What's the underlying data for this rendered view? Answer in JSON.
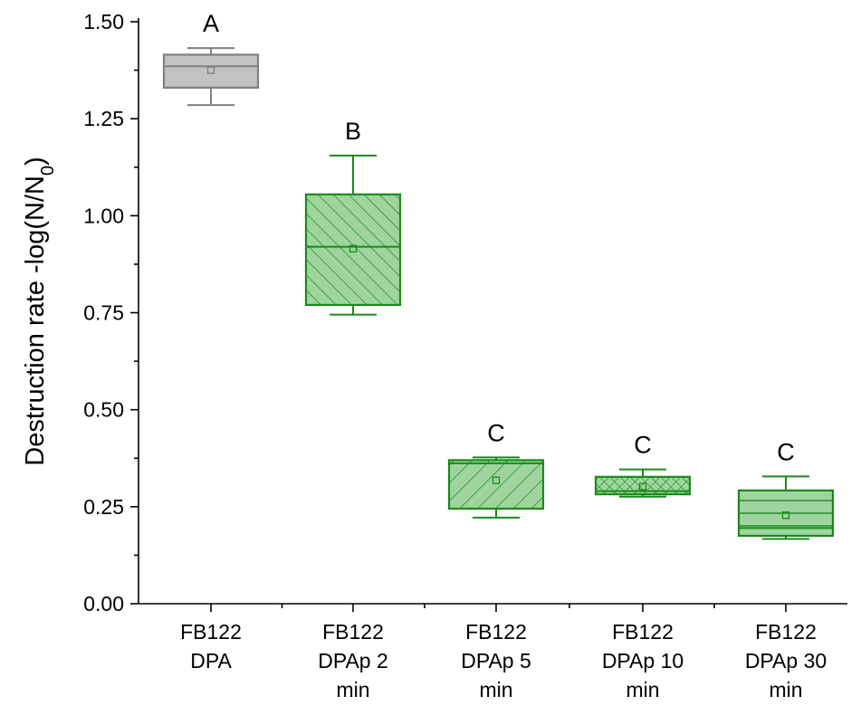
{
  "chart_data": {
    "type": "box",
    "title": "",
    "xlabel": "",
    "ylabel": "Destruction rate -log(N/N",
    "ylabel_subscript": "0",
    "ylabel_suffix": ")",
    "ylim": [
      0,
      1.5
    ],
    "yticks": [
      0.0,
      0.25,
      0.5,
      0.75,
      1.0,
      1.25,
      1.5
    ],
    "ytick_labels": [
      "0.00",
      "0.25",
      "0.50",
      "0.75",
      "1.00",
      "1.25",
      "1.50"
    ],
    "grid": false,
    "categories": [
      [
        "FB122",
        "DPA"
      ],
      [
        "FB122",
        "DPAp 2",
        "min"
      ],
      [
        "FB122",
        "DPAp 5",
        "min"
      ],
      [
        "FB122",
        "DPAp 10",
        "min"
      ],
      [
        "FB122",
        "DPAp 30",
        "min"
      ]
    ],
    "boxes": [
      {
        "whisker_low": 1.285,
        "q1": 1.33,
        "median": 1.385,
        "q3": 1.415,
        "whisker_high": 1.432,
        "mean": 1.375,
        "group_letter": "A",
        "color": "#808080",
        "fill": "#c2c2c2",
        "pattern": "none"
      },
      {
        "whisker_low": 0.745,
        "q1": 0.77,
        "median": 0.92,
        "q3": 1.055,
        "whisker_high": 1.155,
        "mean": 0.915,
        "group_letter": "B",
        "color": "#1a8a1a",
        "fill": "#9fd49f",
        "pattern": "diagonal-forward"
      },
      {
        "whisker_low": 0.222,
        "q1": 0.245,
        "median": 0.362,
        "q3": 0.37,
        "whisker_high": 0.377,
        "mean": 0.318,
        "group_letter": "C",
        "color": "#1a8a1a",
        "fill": "#9fd49f",
        "pattern": "diagonal-back"
      },
      {
        "whisker_low": 0.276,
        "q1": 0.282,
        "median": 0.29,
        "q3": 0.327,
        "whisker_high": 0.346,
        "mean": 0.302,
        "group_letter": "C",
        "color": "#1a8a1a",
        "fill": "#9fd49f",
        "pattern": "crosshatch"
      },
      {
        "whisker_low": 0.167,
        "q1": 0.175,
        "median": 0.195,
        "q3": 0.292,
        "whisker_high": 0.328,
        "mean": 0.228,
        "group_letter": "C",
        "color": "#1a8a1a",
        "fill": "#9fd49f",
        "pattern": "horizontal"
      }
    ]
  }
}
